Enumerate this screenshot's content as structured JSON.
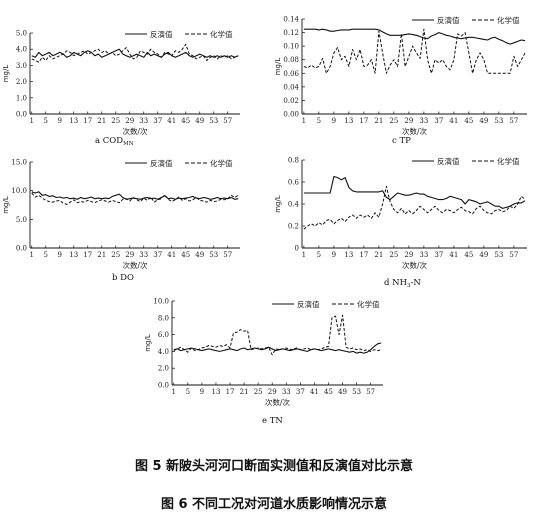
{
  "legend": {
    "inverse": "反演值",
    "chemical": "化学值"
  },
  "xlabel": "次数/次",
  "ylabel": "mg/L",
  "captions": {
    "fig5": "图 5  新陂头河河口断面实测值和反演值对比示意",
    "fig6": "图 6 不同工况对河道水质影响情况示意"
  },
  "x_ticks": [
    "1",
    "5",
    "9",
    "13",
    "17",
    "21",
    "25",
    "29",
    "33",
    "37",
    "41",
    "45",
    "49",
    "53",
    "57"
  ],
  "chart_data": [
    {
      "id": "cod",
      "type": "line",
      "panel": "a",
      "label": "COD",
      "label_sub": "MN",
      "ylim": [
        0,
        5
      ],
      "yticks": [
        "0.0",
        "1.0",
        "2.0",
        "3.0",
        "4.0",
        "5.0"
      ],
      "series": [
        {
          "name": "反演值",
          "style": "solid",
          "values": [
            3.6,
            3.5,
            3.8,
            3.6,
            3.7,
            3.8,
            3.6,
            3.7,
            3.8,
            3.7,
            3.5,
            3.6,
            3.8,
            3.7,
            3.6,
            3.8,
            3.9,
            3.8,
            3.6,
            3.7,
            3.5,
            3.6,
            3.7,
            3.8,
            3.9,
            4.0,
            3.7,
            3.6,
            3.5,
            3.6,
            3.7,
            3.6,
            3.5,
            3.8,
            3.6,
            3.7,
            3.6,
            3.5,
            3.7,
            3.8,
            3.6,
            3.5,
            3.6,
            3.7,
            3.8,
            3.6,
            3.5,
            3.6,
            3.7,
            3.6,
            3.5,
            3.6,
            3.5,
            3.6,
            3.5,
            3.6,
            3.5,
            3.6,
            3.5,
            3.6
          ]
        },
        {
          "name": "化学值",
          "style": "dashed",
          "values": [
            3.4,
            3.3,
            3.2,
            3.5,
            3.3,
            3.6,
            3.4,
            3.5,
            3.6,
            3.7,
            3.9,
            3.8,
            3.6,
            3.7,
            3.8,
            3.9,
            3.7,
            3.8,
            3.9,
            4.0,
            3.8,
            3.9,
            3.7,
            3.8,
            3.6,
            3.7,
            3.9,
            4.1,
            3.7,
            3.4,
            3.5,
            3.9,
            3.8,
            3.7,
            4.0,
            3.8,
            3.7,
            3.5,
            3.8,
            3.7,
            3.6,
            3.9,
            3.8,
            4.0,
            4.3,
            3.7,
            3.6,
            3.4,
            3.5,
            3.6,
            3.3,
            3.5,
            3.6,
            3.4,
            3.6,
            3.5,
            3.6,
            3.4,
            3.5,
            3.6
          ]
        }
      ]
    },
    {
      "id": "tp",
      "type": "line",
      "panel": "c",
      "label": "TP",
      "label_sub": "",
      "ylim": [
        0,
        0.14
      ],
      "yticks": [
        "0.00",
        "0.02",
        "0.04",
        "0.06",
        "0.08",
        "0.10",
        "0.12",
        "0.14"
      ],
      "series": [
        {
          "name": "反演值",
          "style": "solid",
          "values": [
            0.125,
            0.125,
            0.125,
            0.125,
            0.124,
            0.125,
            0.124,
            0.122,
            0.122,
            0.123,
            0.124,
            0.124,
            0.124,
            0.125,
            0.125,
            0.125,
            0.125,
            0.125,
            0.125,
            0.125,
            0.124,
            0.121,
            0.118,
            0.116,
            0.116,
            0.116,
            0.116,
            0.117,
            0.118,
            0.117,
            0.116,
            0.114,
            0.112,
            0.111,
            0.115,
            0.117,
            0.12,
            0.118,
            0.116,
            0.115,
            0.113,
            0.112,
            0.111,
            0.112,
            0.113,
            0.113,
            0.112,
            0.111,
            0.11,
            0.109,
            0.112,
            0.113,
            0.11,
            0.108,
            0.105,
            0.103,
            0.105,
            0.107,
            0.109,
            0.108
          ]
        },
        {
          "name": "化学值",
          "style": "dashed",
          "values": [
            0.07,
            0.068,
            0.072,
            0.068,
            0.07,
            0.082,
            0.06,
            0.07,
            0.09,
            0.098,
            0.08,
            0.085,
            0.07,
            0.095,
            0.08,
            0.095,
            0.07,
            0.072,
            0.08,
            0.06,
            0.122,
            0.09,
            0.06,
            0.072,
            0.08,
            0.07,
            0.118,
            0.07,
            0.085,
            0.1,
            0.09,
            0.082,
            0.125,
            0.08,
            0.06,
            0.08,
            0.075,
            0.08,
            0.07,
            0.065,
            0.08,
            0.118,
            0.115,
            0.12,
            0.09,
            0.06,
            0.08,
            0.09,
            0.08,
            0.06,
            0.06,
            0.06,
            0.06,
            0.06,
            0.06,
            0.06,
            0.085,
            0.07,
            0.08,
            0.09
          ]
        }
      ]
    },
    {
      "id": "do",
      "type": "line",
      "panel": "b",
      "label": "DO",
      "label_sub": "",
      "ylim": [
        0,
        15
      ],
      "yticks": [
        "0.0",
        "5.0",
        "10.0",
        "15.0"
      ],
      "series": [
        {
          "name": "反演值",
          "style": "solid",
          "values": [
            9.8,
            9.6,
            9.8,
            9.2,
            9.3,
            9.0,
            9.1,
            8.8,
            8.9,
            8.7,
            8.8,
            8.6,
            8.7,
            8.5,
            8.8,
            8.6,
            8.7,
            8.9,
            8.6,
            8.7,
            8.6,
            8.7,
            8.6,
            9.0,
            9.2,
            9.4,
            8.8,
            8.5,
            8.6,
            8.7,
            8.6,
            8.5,
            8.7,
            8.8,
            8.6,
            8.7,
            8.5,
            8.8,
            9.1,
            8.6,
            8.7,
            8.5,
            8.7,
            8.6,
            8.7,
            8.8,
            9.0,
            8.7,
            8.6,
            8.8,
            8.7,
            8.5,
            8.6,
            8.8,
            8.6,
            8.7,
            8.6,
            8.8,
            8.5,
            8.6
          ]
        },
        {
          "name": "化学值",
          "style": "dashed",
          "values": [
            9.6,
            8.9,
            9.2,
            8.7,
            8.3,
            8.1,
            8.0,
            8.2,
            8.3,
            7.8,
            7.6,
            8.0,
            8.4,
            7.9,
            8.1,
            8.0,
            8.3,
            8.1,
            7.9,
            8.2,
            8.4,
            8.2,
            8.0,
            8.3,
            8.1,
            7.9,
            8.5,
            8.6,
            8.2,
            8.8,
            8.4,
            8.1,
            8.7,
            8.3,
            8.9,
            8.0,
            8.4,
            8.6,
            9.3,
            8.5,
            8.1,
            8.4,
            8.9,
            8.3,
            8.6,
            8.2,
            8.4,
            8.8,
            8.3,
            8.2,
            8.0,
            8.3,
            8.1,
            8.2,
            8.5,
            8.4,
            8.6,
            9.2,
            8.8,
            9.2
          ]
        }
      ]
    },
    {
      "id": "nh3n",
      "type": "line",
      "panel": "d",
      "label": "NH",
      "label_sub": "3",
      "label_suffix": "-N",
      "ylim": [
        0,
        0.8
      ],
      "yticks": [
        "0",
        "0.2",
        "0.4",
        "0.6",
        "0.8"
      ],
      "series": [
        {
          "name": "反演值",
          "style": "solid",
          "values": [
            0.5,
            0.5,
            0.5,
            0.5,
            0.5,
            0.5,
            0.5,
            0.5,
            0.65,
            0.64,
            0.62,
            0.64,
            0.55,
            0.52,
            0.51,
            0.51,
            0.51,
            0.51,
            0.51,
            0.51,
            0.51,
            0.52,
            0.46,
            0.44,
            0.47,
            0.5,
            0.49,
            0.48,
            0.48,
            0.49,
            0.5,
            0.49,
            0.49,
            0.47,
            0.46,
            0.45,
            0.44,
            0.44,
            0.45,
            0.47,
            0.46,
            0.45,
            0.44,
            0.4,
            0.44,
            0.43,
            0.42,
            0.4,
            0.41,
            0.42,
            0.4,
            0.38,
            0.38,
            0.36,
            0.37,
            0.38,
            0.4,
            0.41,
            0.41,
            0.43
          ]
        },
        {
          "name": "化学值",
          "style": "dashed",
          "values": [
            0.17,
            0.2,
            0.22,
            0.2,
            0.23,
            0.21,
            0.25,
            0.26,
            0.22,
            0.25,
            0.27,
            0.24,
            0.28,
            0.3,
            0.27,
            0.3,
            0.28,
            0.3,
            0.27,
            0.32,
            0.28,
            0.4,
            0.56,
            0.42,
            0.35,
            0.32,
            0.36,
            0.31,
            0.34,
            0.31,
            0.34,
            0.38,
            0.35,
            0.32,
            0.35,
            0.38,
            0.34,
            0.32,
            0.35,
            0.34,
            0.32,
            0.35,
            0.37,
            0.34,
            0.33,
            0.31,
            0.36,
            0.38,
            0.34,
            0.32,
            0.31,
            0.34,
            0.35,
            0.33,
            0.34,
            0.38,
            0.36,
            0.4,
            0.47,
            0.44
          ]
        }
      ]
    },
    {
      "id": "tn",
      "type": "line",
      "panel": "e",
      "label": "TN",
      "label_sub": "",
      "ylim": [
        0,
        10
      ],
      "yticks": [
        "0.0",
        "2.0",
        "4.0",
        "6.0",
        "8.0",
        "10.0"
      ],
      "series": [
        {
          "name": "反演值",
          "style": "solid",
          "values": [
            4.2,
            4.3,
            4.1,
            4.2,
            4.3,
            4.4,
            4.3,
            4.2,
            4.1,
            4.2,
            4.3,
            4.2,
            4.1,
            4.0,
            4.1,
            4.2,
            4.3,
            4.2,
            4.1,
            4.3,
            4.4,
            4.2,
            4.3,
            4.4,
            4.3,
            4.2,
            4.3,
            4.5,
            4.3,
            4.1,
            4.2,
            4.3,
            4.2,
            4.1,
            4.2,
            4.3,
            4.2,
            4.1,
            4.0,
            4.2,
            4.3,
            4.2,
            4.1,
            4.2,
            4.3,
            4.2,
            4.1,
            4.2,
            4.1,
            4.0,
            3.9,
            4.0,
            3.8,
            3.9,
            3.8,
            3.9,
            4.2,
            4.6,
            4.9,
            5.0
          ]
        },
        {
          "name": "化学值",
          "style": "dashed",
          "values": [
            4.1,
            4.3,
            4.5,
            4.2,
            3.9,
            4.4,
            4.1,
            4.2,
            4.4,
            4.5,
            4.7,
            4.6,
            4.5,
            4.7,
            4.6,
            4.8,
            4.4,
            6.2,
            6.3,
            6.6,
            6.4,
            6.5,
            4.2,
            4.3,
            4.4,
            4.3,
            4.4,
            4.5,
            3.6,
            4.3,
            4.2,
            4.3,
            4.4,
            4.2,
            4.3,
            4.4,
            4.2,
            4.3,
            4.4,
            4.2,
            4.3,
            4.2,
            4.3,
            4.5,
            4.6,
            8.0,
            8.2,
            6.0,
            8.3,
            4.5,
            4.3,
            4.4,
            4.2,
            4.3,
            4.1,
            4.2,
            4.0,
            4.2,
            4.1,
            4.2
          ]
        }
      ]
    }
  ]
}
